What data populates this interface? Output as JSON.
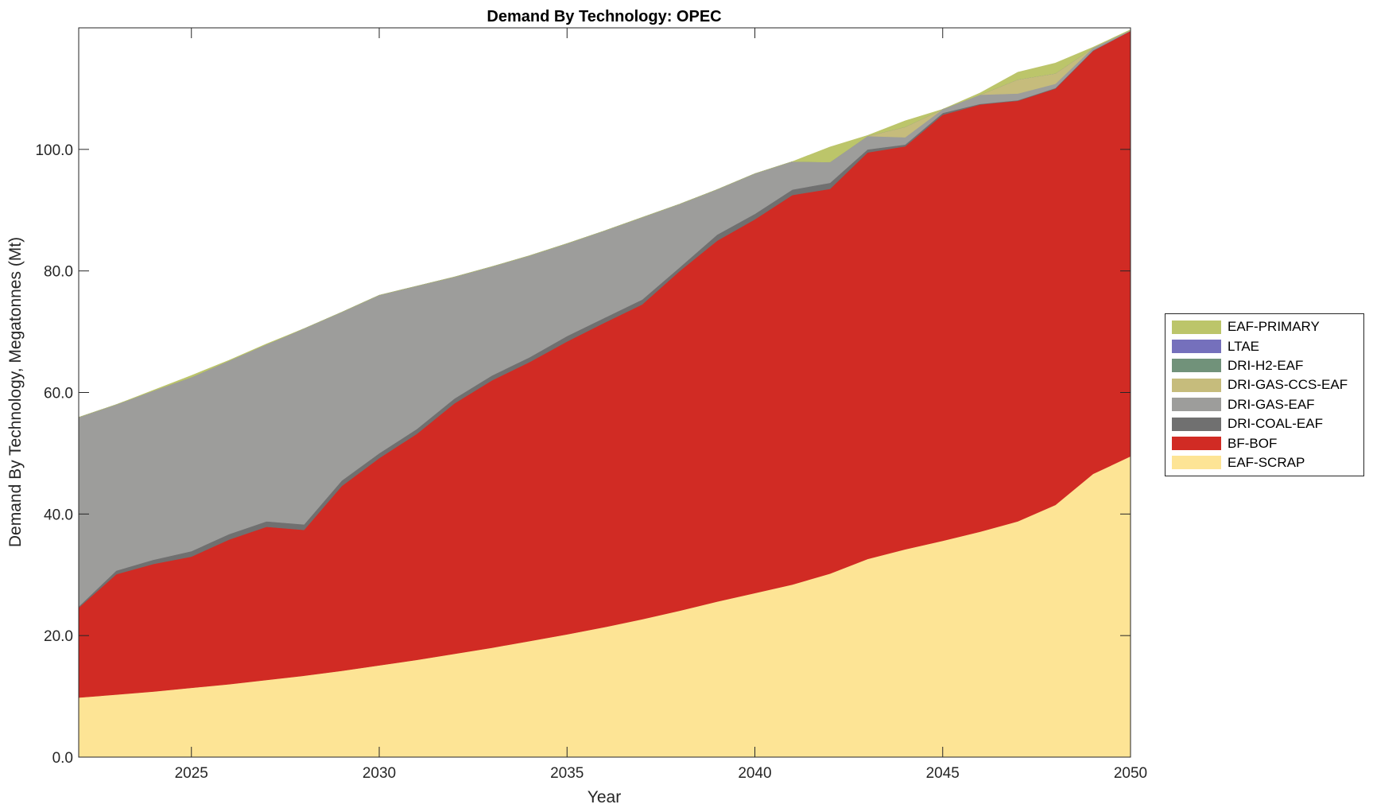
{
  "chart_data": {
    "type": "area",
    "stacked": true,
    "title": "Demand By Technology: OPEC",
    "xlabel": "Year",
    "ylabel": "Demand By Technology, Megatonnes (Mt)",
    "xlim": [
      2022,
      2050
    ],
    "ylim": [
      0,
      120
    ],
    "xticks": [
      2025,
      2030,
      2035,
      2040,
      2045,
      2050
    ],
    "xtick_labels": [
      "2025",
      "2030",
      "2035",
      "2040",
      "2045",
      "2050"
    ],
    "yticks": [
      0,
      20,
      40,
      60,
      80,
      100
    ],
    "ytick_labels": [
      "0.0",
      "20.0",
      "40.0",
      "60.0",
      "80.0",
      "100.0"
    ],
    "grid": false,
    "legend_position": "right",
    "x": [
      2022,
      2023,
      2024,
      2025,
      2026,
      2027,
      2028,
      2029,
      2030,
      2031,
      2032,
      2033,
      2034,
      2035,
      2036,
      2037,
      2038,
      2039,
      2040,
      2041,
      2042,
      2043,
      2044,
      2045,
      2046,
      2047,
      2048,
      2049,
      2050
    ],
    "series": [
      {
        "name": "EAF-SCRAP",
        "color": "#FDE495",
        "values": [
          9.8,
          10.3,
          10.8,
          11.4,
          12.0,
          12.7,
          13.4,
          14.2,
          15.1,
          16.0,
          17.0,
          18.0,
          19.1,
          20.2,
          21.4,
          22.7,
          24.1,
          25.6,
          27.0,
          28.4,
          30.2,
          32.6,
          34.2,
          35.6,
          37.1,
          38.8,
          41.5,
          46.6,
          49.5
        ]
      },
      {
        "name": "BF-BOF",
        "color": "#D12B24",
        "values": [
          14.8,
          19.8,
          21.0,
          21.6,
          23.8,
          25.2,
          24.0,
          30.4,
          34.1,
          37.2,
          41.2,
          44.0,
          45.9,
          48.2,
          50.1,
          51.8,
          55.9,
          59.4,
          61.5,
          64.1,
          63.3,
          66.9,
          66.3,
          70.1,
          70.3,
          69.2,
          68.5,
          69.6,
          70.0
        ]
      },
      {
        "name": "DRI-COAL-EAF",
        "color": "#707070",
        "values": [
          0.2,
          0.6,
          0.7,
          0.9,
          0.9,
          0.9,
          0.9,
          0.9,
          0.8,
          0.8,
          0.8,
          0.8,
          0.8,
          0.9,
          0.8,
          0.8,
          0.6,
          1.0,
          0.9,
          0.9,
          1.0,
          0.5,
          0.3,
          0.3,
          0.1,
          0.1,
          0.1,
          0.1,
          0.0
        ]
      },
      {
        "name": "DRI-GAS-EAF",
        "color": "#9D9D9B",
        "values": [
          31.1,
          27.3,
          27.8,
          28.6,
          28.5,
          29.1,
          32.2,
          27.7,
          26.0,
          23.5,
          20.0,
          17.9,
          16.7,
          15.2,
          14.3,
          13.5,
          10.4,
          7.4,
          6.6,
          4.6,
          3.4,
          2.2,
          1.2,
          0.6,
          1.5,
          1.1,
          0.7,
          0.4,
          0.1
        ]
      },
      {
        "name": "DRI-GAS-CCS-EAF",
        "color": "#C6BC7C",
        "values": [
          0,
          0,
          0,
          0,
          0,
          0,
          0,
          0,
          0,
          0,
          0,
          0,
          0,
          0,
          0,
          0,
          0,
          0,
          0,
          0,
          0,
          0,
          1.7,
          0,
          0,
          2.3,
          1.7,
          0,
          0
        ]
      },
      {
        "name": "DRI-H2-EAF",
        "color": "#71927A",
        "values": [
          0,
          0,
          0,
          0,
          0,
          0,
          0,
          0,
          0,
          0,
          0,
          0,
          0,
          0,
          0,
          0,
          0,
          0,
          0,
          0,
          0,
          0,
          0,
          0,
          0,
          0,
          0,
          0,
          0
        ]
      },
      {
        "name": "LTAE",
        "color": "#7570BC",
        "values": [
          0,
          0,
          0,
          0,
          0,
          0,
          0,
          0,
          0,
          0,
          0,
          0,
          0,
          0,
          0,
          0,
          0,
          0,
          0,
          0,
          0,
          0,
          0,
          0,
          0,
          0,
          0,
          0,
          0
        ]
      },
      {
        "name": "EAF-PRIMARY",
        "color": "#BCC56A",
        "values": [
          0,
          0,
          0.1,
          0.3,
          0.1,
          0.1,
          0,
          0,
          0,
          0,
          0,
          0,
          0,
          0,
          0,
          0,
          0,
          0,
          0,
          0,
          2.5,
          0.1,
          1.0,
          0,
          0.3,
          1.2,
          1.7,
          0.1,
          0.1
        ]
      }
    ]
  }
}
